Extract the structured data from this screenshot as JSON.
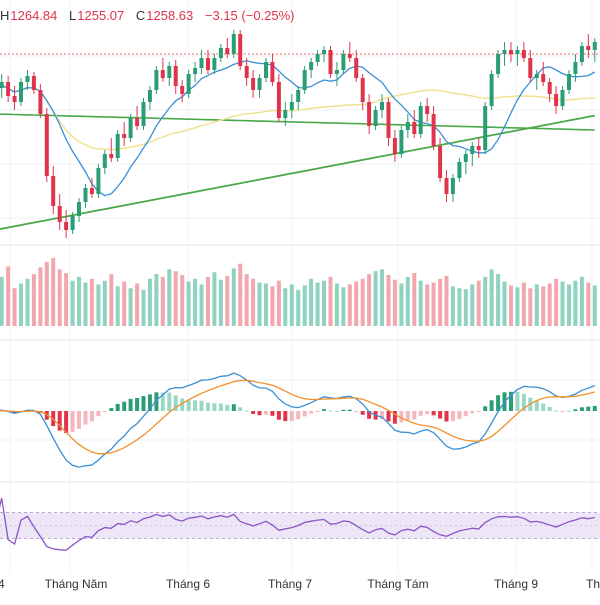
{
  "header": {
    "high_label": "H",
    "high": "1264.84",
    "low_label": "L",
    "low": "1255.07",
    "close_label": "C",
    "close": "1258.63",
    "change": "−3.15 (−0.25%)"
  },
  "colors": {
    "up": "#2a9d74",
    "down": "#e0344d",
    "vol_up": "#8fd2bf",
    "vol_down": "#f2a7ae",
    "ma_fast": "#3b8fd6",
    "ma_mid": "#efe08a",
    "ma_slow1": "#4aa84a",
    "ma_slow2": "#4aa84a",
    "macd_line": "#3b8fd6",
    "signal_line": "#f2912b",
    "rsi_line": "#8b55c6",
    "rsi_band": "#ece6f7",
    "grid": "#eef0f3",
    "ref_dotted": "#e86a6a"
  },
  "chart_data": [
    {
      "type": "candlestick",
      "panel": "price",
      "x_ticks": [
        "4",
        "Tháng Năm",
        "Tháng 6",
        "Tháng 7",
        "Tháng Tám",
        "Tháng 9",
        "Th"
      ],
      "series": [
        {
          "kind": "candles",
          "note": "approximate OHLC, daily, Apr–Sep",
          "values": [
            [
              1238,
              1246,
              1232,
              1243
            ],
            [
              1243,
              1250,
              1238,
              1246
            ],
            [
              1246,
              1249,
              1236,
              1239
            ],
            [
              1239,
              1244,
              1232,
              1236
            ],
            [
              1236,
              1248,
              1234,
              1246
            ],
            [
              1246,
              1252,
              1242,
              1249
            ],
            [
              1249,
              1251,
              1240,
              1242
            ],
            [
              1242,
              1245,
              1228,
              1230
            ],
            [
              1230,
              1233,
              1196,
              1199
            ],
            [
              1199,
              1204,
              1180,
              1184
            ],
            [
              1184,
              1190,
              1172,
              1176
            ],
            [
              1176,
              1182,
              1168,
              1172
            ],
            [
              1172,
              1181,
              1170,
              1179
            ],
            [
              1179,
              1188,
              1176,
              1186
            ],
            [
              1186,
              1195,
              1183,
              1193
            ],
            [
              1193,
              1198,
              1188,
              1190
            ],
            [
              1190,
              1205,
              1188,
              1203
            ],
            [
              1203,
              1212,
              1200,
              1210
            ],
            [
              1210,
              1218,
              1206,
              1208
            ],
            [
              1208,
              1222,
              1206,
              1220
            ],
            [
              1220,
              1226,
              1214,
              1218
            ],
            [
              1218,
              1230,
              1216,
              1228
            ],
            [
              1228,
              1234,
              1222,
              1224
            ],
            [
              1224,
              1238,
              1222,
              1236
            ],
            [
              1236,
              1244,
              1232,
              1242
            ],
            [
              1242,
              1254,
              1240,
              1252
            ],
            [
              1252,
              1258,
              1246,
              1248
            ],
            [
              1248,
              1256,
              1244,
              1254
            ],
            [
              1254,
              1257,
              1240,
              1244
            ],
            [
              1244,
              1247,
              1236,
              1240
            ],
            [
              1240,
              1252,
              1238,
              1250
            ],
            [
              1250,
              1256,
              1246,
              1253
            ],
            [
              1253,
              1262,
              1250,
              1258
            ],
            [
              1258,
              1262,
              1250,
              1252
            ],
            [
              1252,
              1260,
              1250,
              1258
            ],
            [
              1258,
              1265,
              1256,
              1263
            ],
            [
              1263,
              1268,
              1258,
              1260
            ],
            [
              1260,
              1272,
              1258,
              1270
            ],
            [
              1270,
              1272,
              1252,
              1254
            ],
            [
              1254,
              1258,
              1244,
              1248
            ],
            [
              1248,
              1252,
              1238,
              1242
            ],
            [
              1242,
              1250,
              1238,
              1248
            ],
            [
              1248,
              1258,
              1246,
              1256
            ],
            [
              1256,
              1260,
              1244,
              1246
            ],
            [
              1246,
              1250,
              1226,
              1228
            ],
            [
              1228,
              1236,
              1224,
              1232
            ],
            [
              1232,
              1240,
              1228,
              1236
            ],
            [
              1236,
              1244,
              1232,
              1242
            ],
            [
              1242,
              1254,
              1240,
              1252
            ],
            [
              1252,
              1258,
              1248,
              1256
            ],
            [
              1256,
              1262,
              1254,
              1260
            ],
            [
              1260,
              1264,
              1256,
              1262
            ],
            [
              1262,
              1264,
              1248,
              1250
            ],
            [
              1250,
              1256,
              1244,
              1252
            ],
            [
              1252,
              1262,
              1250,
              1260
            ],
            [
              1260,
              1266,
              1256,
              1258
            ],
            [
              1258,
              1262,
              1246,
              1248
            ],
            [
              1248,
              1250,
              1232,
              1236
            ],
            [
              1236,
              1240,
              1220,
              1224
            ],
            [
              1224,
              1234,
              1222,
              1232
            ],
            [
              1232,
              1240,
              1228,
              1236
            ],
            [
              1236,
              1238,
              1214,
              1218
            ],
            [
              1218,
              1222,
              1206,
              1210
            ],
            [
              1210,
              1224,
              1208,
              1222
            ],
            [
              1222,
              1230,
              1218,
              1226
            ],
            [
              1226,
              1232,
              1218,
              1220
            ],
            [
              1220,
              1236,
              1218,
              1234
            ],
            [
              1234,
              1238,
              1226,
              1230
            ],
            [
              1230,
              1234,
              1212,
              1214
            ],
            [
              1214,
              1218,
              1196,
              1198
            ],
            [
              1198,
              1202,
              1186,
              1190
            ],
            [
              1190,
              1200,
              1186,
              1198
            ],
            [
              1198,
              1208,
              1196,
              1206
            ],
            [
              1206,
              1212,
              1200,
              1210
            ],
            [
              1210,
              1216,
              1204,
              1214
            ],
            [
              1214,
              1218,
              1208,
              1212
            ],
            [
              1212,
              1236,
              1210,
              1234
            ],
            [
              1234,
              1252,
              1232,
              1250
            ],
            [
              1250,
              1262,
              1248,
              1260
            ],
            [
              1260,
              1266,
              1254,
              1262
            ],
            [
              1262,
              1266,
              1256,
              1260
            ],
            [
              1260,
              1264,
              1254,
              1262
            ],
            [
              1262,
              1266,
              1256,
              1258
            ],
            [
              1258,
              1262,
              1246,
              1248
            ],
            [
              1248,
              1252,
              1242,
              1250
            ],
            [
              1250,
              1256,
              1244,
              1246
            ],
            [
              1246,
              1248,
              1236,
              1240
            ],
            [
              1240,
              1244,
              1230,
              1234
            ],
            [
              1234,
              1244,
              1232,
              1242
            ],
            [
              1242,
              1252,
              1240,
              1250
            ],
            [
              1250,
              1260,
              1246,
              1256
            ],
            [
              1256,
              1266,
              1254,
              1264
            ],
            [
              1264,
              1270,
              1258,
              1262
            ],
            [
              1262,
              1268,
              1256,
              1266
            ]
          ]
        },
        {
          "kind": "line",
          "name": "",
          "role": "ma_fast"
        },
        {
          "kind": "line",
          "name": "",
          "role": "ma_mid"
        },
        {
          "kind": "line",
          "name": "",
          "role": "ma_slow"
        },
        {
          "kind": "line",
          "name": "",
          "role": "ma_slow2"
        }
      ]
    },
    {
      "type": "bar",
      "panel": "volume",
      "values": [
        58,
        52,
        63,
        40,
        45,
        50,
        55,
        62,
        68,
        72,
        60,
        56,
        48,
        52,
        46,
        50,
        44,
        48,
        55,
        42,
        47,
        40,
        45,
        38,
        50,
        55,
        52,
        60,
        58,
        54,
        47,
        50,
        44,
        52,
        57,
        49,
        53,
        61,
        66,
        55,
        50,
        46,
        45,
        42,
        48,
        40,
        44,
        38,
        43,
        50,
        46,
        48,
        52,
        45,
        41,
        44,
        47,
        50,
        55,
        58,
        60,
        54,
        49,
        45,
        52,
        56,
        48,
        44,
        46,
        50,
        53,
        42,
        40,
        39,
        44,
        48,
        52,
        60,
        55,
        47,
        43,
        41,
        46,
        40,
        44,
        42,
        45,
        50,
        47,
        44,
        48,
        52,
        46,
        43
      ]
    },
    {
      "type": "line",
      "panel": "macd",
      "series": [
        {
          "name": "",
          "role": "macd_line"
        },
        {
          "name": "",
          "role": "signal_line"
        },
        {
          "name": "",
          "role": "histogram"
        }
      ]
    },
    {
      "type": "line",
      "panel": "rsi",
      "band": [
        30,
        70
      ],
      "ylim": [
        0,
        100
      ],
      "series": [
        {
          "name": "",
          "role": "rsi_line"
        }
      ]
    }
  ]
}
